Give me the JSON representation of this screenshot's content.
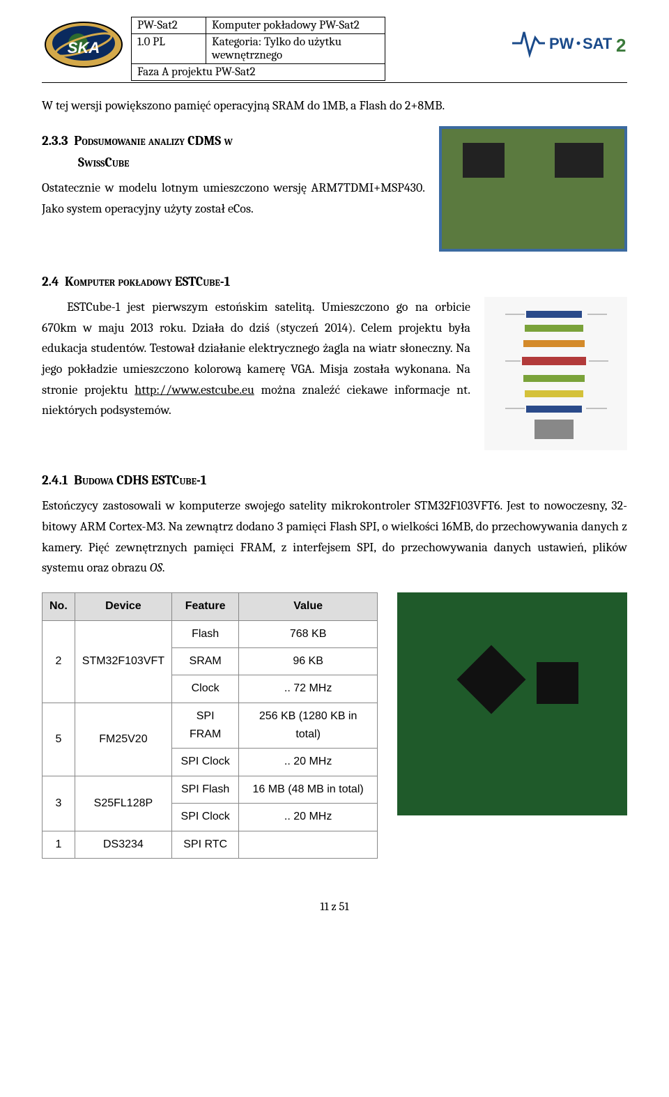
{
  "header": {
    "r1c1": "PW-Sat2",
    "r1c2": "Komputer pokładowy PW-Sat2",
    "r2c1": "1.0 PL",
    "r2c2": "Kategoria: Tylko do użytku wewnętrznego",
    "r3": "Faza A projektu PW-Sat2",
    "logo_left_alt": "SKA logo",
    "logo_right_text": "PW•SAT",
    "logo_right_suffix": "2"
  },
  "intro": "W tej wersji powiększono pamięć operacyjną SRAM do 1MB, a Flash do 2+8MB.",
  "sec233": {
    "num": "2.3.3",
    "title_a": "Podsumowanie analizy CDMS w",
    "title_b": "SwissCube",
    "p": "Ostatecznie w modelu lotnym umieszczono wersję ARM7TDMI+MSP430. Jako system operacyjny użyty został eCos."
  },
  "sec24": {
    "num": "2.4",
    "title": "Komputer pokładowy ESTCube-1",
    "p_a": "ESTCube-1 jest pierwszym estońskim satelitą. Umieszczono go na orbicie 670km w maju 2013 roku. Działa do dziś (styczeń 2014). Celem projektu była edukacja studentów. Testował działanie elektrycznego żagla na wiatr słoneczny. Na jego pokładzie umieszczono kolorową kamerę VGA. Misja została wykonana. Na stronie projektu ",
    "link": "http://www.estcube.eu",
    "p_b": " można znaleźć ciekawe informacje nt. niektórych podsystemów."
  },
  "sec241": {
    "num": "2.4.1",
    "title": "Budowa CDHS ESTCube-1",
    "p": "Estończycy zastosowali w komputerze swojego satelity mikrokontroler STM32F103VFT6. Jest to nowoczesny, 32-bitowy ARM Cortex-M3. Na zewnątrz dodano 3 pamięci Flash SPI, o wielkości 16MB, do przechowywania danych z kamery. Pięć zewnętrznych pamięci FRAM, z interfejsem SPI, do przechowywania danych ustawień, plików systemu oraz obrazu ",
    "p_em": "OS",
    "p_end": "."
  },
  "table": {
    "headers": [
      "No.",
      "Device",
      "Feature",
      "Value"
    ],
    "rows": [
      {
        "no": "2",
        "device": "STM32F103VFT",
        "features": [
          "Flash",
          "SRAM",
          "Clock"
        ],
        "values": [
          "768 KB",
          "96 KB",
          ".. 72 MHz"
        ]
      },
      {
        "no": "5",
        "device": "FM25V20",
        "features": [
          "SPI FRAM",
          "SPI Clock"
        ],
        "values": [
          "256 KB (1280 KB in total)",
          ".. 20 MHz"
        ]
      },
      {
        "no": "3",
        "device": "S25FL128P",
        "features": [
          "SPI Flash",
          "SPI Clock"
        ],
        "values": [
          "16 MB (48 MB in total)",
          ".. 20 MHz"
        ]
      },
      {
        "no": "1",
        "device": "DS3234",
        "features": [
          "SPI RTC"
        ],
        "values": [
          ""
        ]
      }
    ]
  },
  "footer": "11 z 51",
  "colors": {
    "page_bg": "#ffffff",
    "text": "#000000",
    "table_header_bg": "#dddddd",
    "table_border": "#888888",
    "pcb_green": "#1f5a2a",
    "board_green": "#5b7a3f",
    "board_border": "#3b6aa0"
  }
}
